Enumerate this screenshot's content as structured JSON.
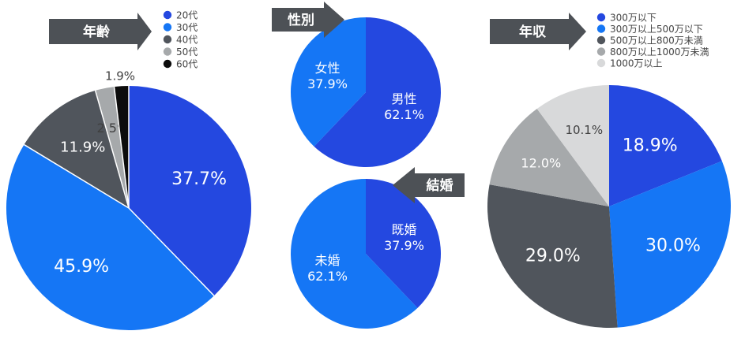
{
  "colors": {
    "blue_dark": "#2448e0",
    "blue": "#1576f5",
    "gray_dark": "#50555c",
    "gray_mid": "#a6a9ab",
    "gray_light": "#d8d9da",
    "black": "#0c0c0c",
    "tag_bg": "#4d5156",
    "label_light": "#ffffff",
    "label_dark": "#404040"
  },
  "chart_data": [
    {
      "type": "pie",
      "title": "年齢",
      "legend_placement": "top",
      "series": [
        {
          "name": "20代",
          "value": 37.7,
          "label": "37.7%",
          "color": "#2448e0"
        },
        {
          "name": "30代",
          "value": 45.9,
          "label": "45.9%",
          "color": "#1576f5"
        },
        {
          "name": "40代",
          "value": 11.9,
          "label": "11.9%",
          "color": "#50555c"
        },
        {
          "name": "50代",
          "value": 2.5,
          "label": "2.5%",
          "color": "#a6a9ab"
        },
        {
          "name": "60代",
          "value": 1.9,
          "label": "1.9%",
          "color": "#0c0c0c"
        }
      ]
    },
    {
      "type": "pie",
      "title": "性別",
      "series": [
        {
          "name": "男性",
          "value": 62.1,
          "label": "62.1%",
          "color": "#2448e0"
        },
        {
          "name": "女性",
          "value": 37.9,
          "label": "37.9%",
          "color": "#1576f5"
        }
      ]
    },
    {
      "type": "pie",
      "title": "結婚",
      "series": [
        {
          "name": "既婚",
          "value": 37.9,
          "label": "37.9%",
          "color": "#2448e0"
        },
        {
          "name": "未婚",
          "value": 62.1,
          "label": "62.1%",
          "color": "#1576f5"
        }
      ]
    },
    {
      "type": "pie",
      "title": "年収",
      "legend_placement": "top",
      "series": [
        {
          "name": "300万以下",
          "value": 18.9,
          "label": "18.9%",
          "color": "#2448e0"
        },
        {
          "name": "300万以上500万以下",
          "value": 30.0,
          "label": "30.0%",
          "color": "#1576f5"
        },
        {
          "name": "500万以上800万未満",
          "value": 29.0,
          "label": "29.0%",
          "color": "#50555c"
        },
        {
          "name": "800万以上1000万未満",
          "value": 12.0,
          "label": "12.0%",
          "color": "#a6a9ab"
        },
        {
          "name": "1000万以上",
          "value": 10.1,
          "label": "10.1%",
          "color": "#d8d9da"
        }
      ]
    }
  ]
}
